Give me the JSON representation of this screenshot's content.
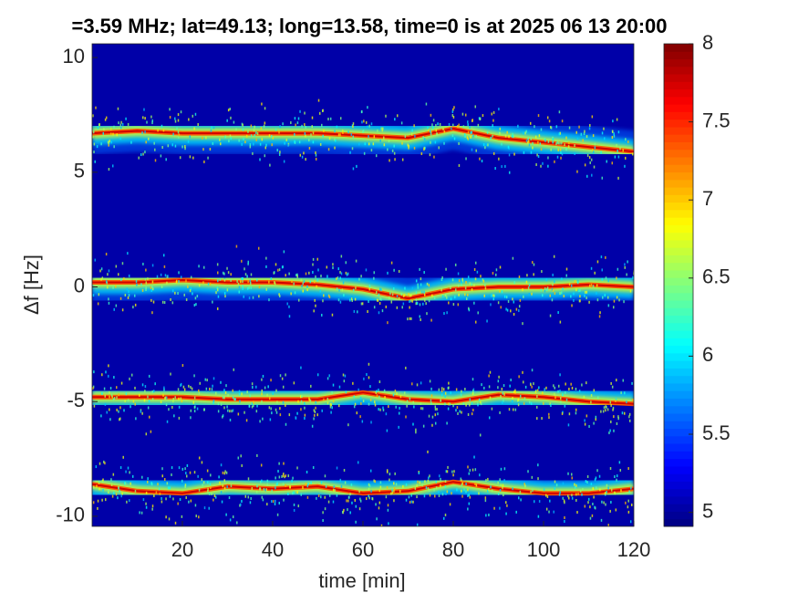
{
  "chart_data": {
    "type": "spectrogram",
    "title": "=3.59 MHz;  lat=49.13; long=13.58, time=0 is at 2025 06 13 20:00",
    "xlabel": "time [min]",
    "ylabel": "Δf [Hz]",
    "x": [
      0,
      10,
      20,
      30,
      40,
      50,
      60,
      70,
      80,
      90,
      100,
      110,
      120
    ],
    "series": [
      {
        "values": [
          6.7,
          6.8,
          6.7,
          6.7,
          6.7,
          6.7,
          6.6,
          6.5,
          6.9,
          6.5,
          6.3,
          6.1,
          5.9
        ]
      },
      {
        "values": [
          0.2,
          0.2,
          0.3,
          0.2,
          0.2,
          0.1,
          -0.1,
          -0.5,
          -0.1,
          0.0,
          0.0,
          0.1,
          0.0
        ]
      },
      {
        "values": [
          -4.8,
          -4.8,
          -4.8,
          -4.9,
          -4.9,
          -4.9,
          -4.6,
          -4.9,
          -5.0,
          -4.7,
          -4.8,
          -5.0,
          -5.1
        ]
      },
      {
        "values": [
          -8.6,
          -8.9,
          -9.0,
          -8.7,
          -8.8,
          -8.7,
          -9.0,
          -8.9,
          -8.5,
          -8.8,
          -9.0,
          -9.0,
          -8.8
        ]
      }
    ],
    "xlim": [
      0,
      120
    ],
    "xticks": [
      20,
      40,
      60,
      80,
      100,
      120
    ],
    "ylim": [
      -10.44,
      10.6
    ],
    "yticks": [
      10,
      5,
      0,
      -5,
      -10
    ],
    "colormap": "jet",
    "clim": [
      4.91,
      8
    ],
    "cticks": [
      5,
      5.5,
      6,
      6.5,
      7,
      7.5,
      8
    ]
  }
}
